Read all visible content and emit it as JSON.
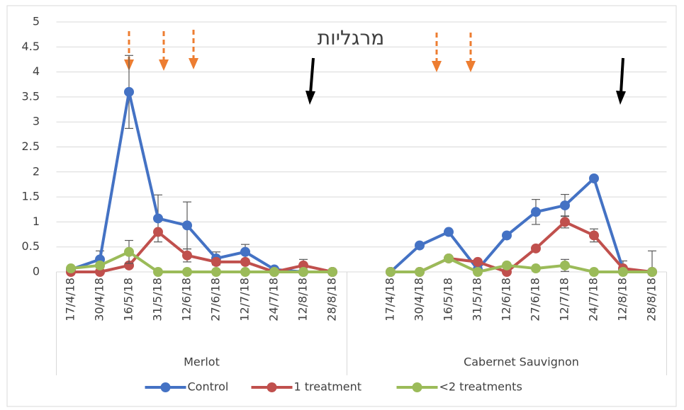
{
  "chart_data": {
    "type": "line",
    "title": "מרגליות",
    "categories": [
      "17/4/18",
      "30/4/18",
      "16/5/18",
      "31/5/18",
      "12/6/18",
      "27/6/18",
      "12/7/18",
      "24/7/18",
      "12/8/18",
      "28/8/18",
      null,
      "17/4/18",
      "30/4/18",
      "16/5/18",
      "31/5/18",
      "12/6/18",
      "27/6/18",
      "12/7/18",
      "24/7/18",
      "12/8/18",
      "28/8/18"
    ],
    "group_labels": [
      "Merlot",
      "Cabernet Sauvignon"
    ],
    "series": [
      {
        "name": "Control",
        "color": "#4472c4",
        "values": [
          0.05,
          0.25,
          3.6,
          1.07,
          0.93,
          0.27,
          0.4,
          0.05,
          0,
          0,
          null,
          0,
          0.53,
          0.8,
          0.05,
          0.73,
          1.2,
          1.33,
          1.87,
          0.05,
          0
        ],
        "errors": [
          null,
          0.17,
          0.73,
          0.47,
          0.47,
          0.13,
          0.15,
          null,
          null,
          null,
          null,
          null,
          null,
          null,
          null,
          null,
          0.25,
          0.22,
          null,
          0.17,
          0.42
        ]
      },
      {
        "name": "1 treatment",
        "color": "#c0504d",
        "values": [
          0,
          0,
          0.13,
          0.8,
          0.33,
          0.2,
          0.2,
          0,
          0.13,
          0,
          null,
          0,
          0,
          0.27,
          0.2,
          0,
          0.47,
          1.0,
          0.73,
          0.07,
          0
        ],
        "errors": [
          null,
          null,
          null,
          null,
          0.13,
          null,
          null,
          null,
          0.12,
          null,
          null,
          null,
          null,
          null,
          null,
          null,
          null,
          0.12,
          0.13,
          null,
          null
        ]
      },
      {
        "name": "<2 treatments",
        "color": "#9bbb59",
        "values": [
          0.07,
          0.13,
          0.4,
          0,
          0,
          0,
          0,
          0,
          0,
          0,
          null,
          0,
          0,
          0.27,
          0,
          0.13,
          0.07,
          0.13,
          0,
          0,
          0
        ],
        "errors": [
          null,
          null,
          0.23,
          null,
          null,
          null,
          null,
          null,
          null,
          null,
          null,
          null,
          null,
          null,
          null,
          null,
          null,
          0.12,
          null,
          null,
          null
        ]
      }
    ],
    "ylim": [
      0,
      5
    ],
    "yticks": [
      0,
      0.5,
      1,
      1.5,
      2,
      2.5,
      3,
      3.5,
      4,
      4.5,
      5
    ],
    "grid": true,
    "legend": "bottom"
  }
}
